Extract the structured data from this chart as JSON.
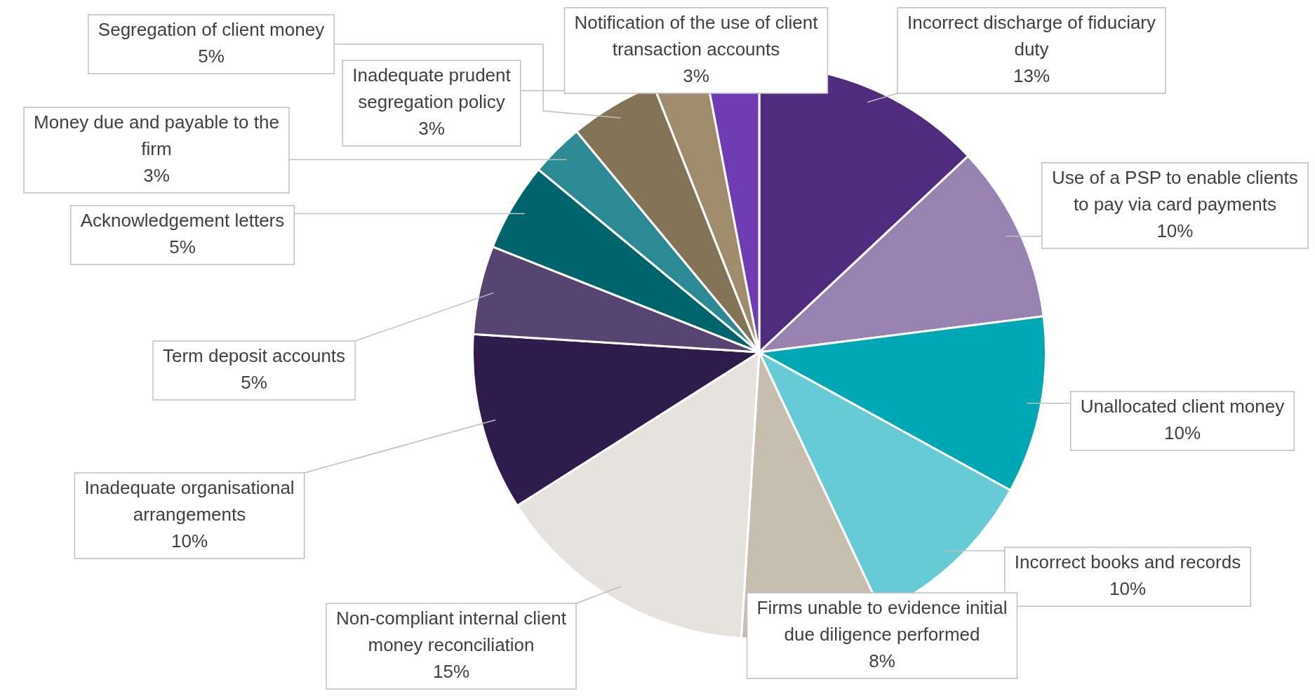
{
  "chart_data": {
    "type": "pie",
    "categories": [
      "Incorrect discharge of fiduciary duty",
      "Use of a PSP to enable clients to pay via card payments",
      "Unallocated client money",
      "Incorrect books and records",
      "Firms unable to evidence initial due diligence performed",
      "Non-compliant internal client money reconciliation",
      "Inadequate organisational arrangements",
      "Term deposit accounts",
      "Acknowledgement letters",
      "Money due and payable to the firm",
      "Segregation of client money",
      "Inadequate prudent segregation policy",
      "Notification of the use of client transaction accounts"
    ],
    "values": [
      13,
      10,
      10,
      10,
      8,
      15,
      10,
      5,
      5,
      3,
      5,
      3,
      3
    ],
    "value_labels": [
      "13%",
      "10%",
      "10%",
      "10%",
      "8%",
      "15%",
      "10%",
      "5%",
      "5%",
      "3%",
      "5%",
      "3%",
      "3%"
    ],
    "colors": [
      "#4f2c7e",
      "#9782b2",
      "#00a7b5",
      "#66cbd4",
      "#c8beb0",
      "#e6e3de",
      "#301c4c",
      "#574470",
      "#00646c",
      "#2b8a94",
      "#847457",
      "#a08c6c",
      "#6f3cb4"
    ],
    "legend": false
  }
}
